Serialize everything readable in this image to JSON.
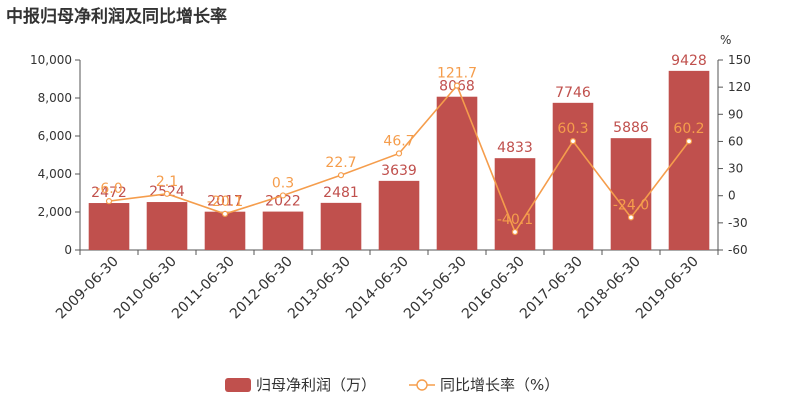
{
  "chart_data": {
    "type": "bar",
    "title": "中报归母净利润及同比增长率",
    "categories": [
      "2009-06-30",
      "2010-06-30",
      "2011-06-30",
      "2012-06-30",
      "2013-06-30",
      "2014-06-30",
      "2015-06-30",
      "2016-06-30",
      "2017-06-30",
      "2018-06-30",
      "2019-06-30"
    ],
    "series": [
      {
        "name": "归母净利润（万）",
        "type": "bar",
        "axis": "left",
        "color": "#c0504d",
        "label_color": "#c0504d",
        "values": [
          2472,
          2524,
          2017,
          2022,
          2481,
          3639,
          8068,
          4833,
          7746,
          5886,
          9428
        ],
        "labels": [
          "2472",
          "2524",
          "2017",
          "2022",
          "2481",
          "3639",
          "8068",
          "4833",
          "7746",
          "5886",
          "9428"
        ]
      },
      {
        "name": "同比增长率（%）",
        "type": "line",
        "axis": "right",
        "color": "#f59d4c",
        "values": [
          -6.0,
          2.1,
          -20.1,
          0.3,
          22.7,
          46.7,
          121.7,
          -40.1,
          60.3,
          -24.0,
          60.2
        ],
        "labels": [
          "-6.0",
          "2.1",
          "-20.1",
          "0.3",
          "22.7",
          "46.7",
          "121.7",
          "-40.1",
          "60.3",
          "-24.0",
          "60.2"
        ]
      }
    ],
    "y_left": {
      "min": 0,
      "max": 10000,
      "ticks": [
        "0",
        "2,000",
        "4,000",
        "6,000",
        "8,000",
        "10,000"
      ]
    },
    "y_right": {
      "min": -60,
      "max": 150,
      "unit": "%",
      "ticks": [
        "-60",
        "-30",
        "0",
        "30",
        "60",
        "90",
        "120",
        "150"
      ]
    },
    "grid": false,
    "legend": "bottom-center"
  }
}
